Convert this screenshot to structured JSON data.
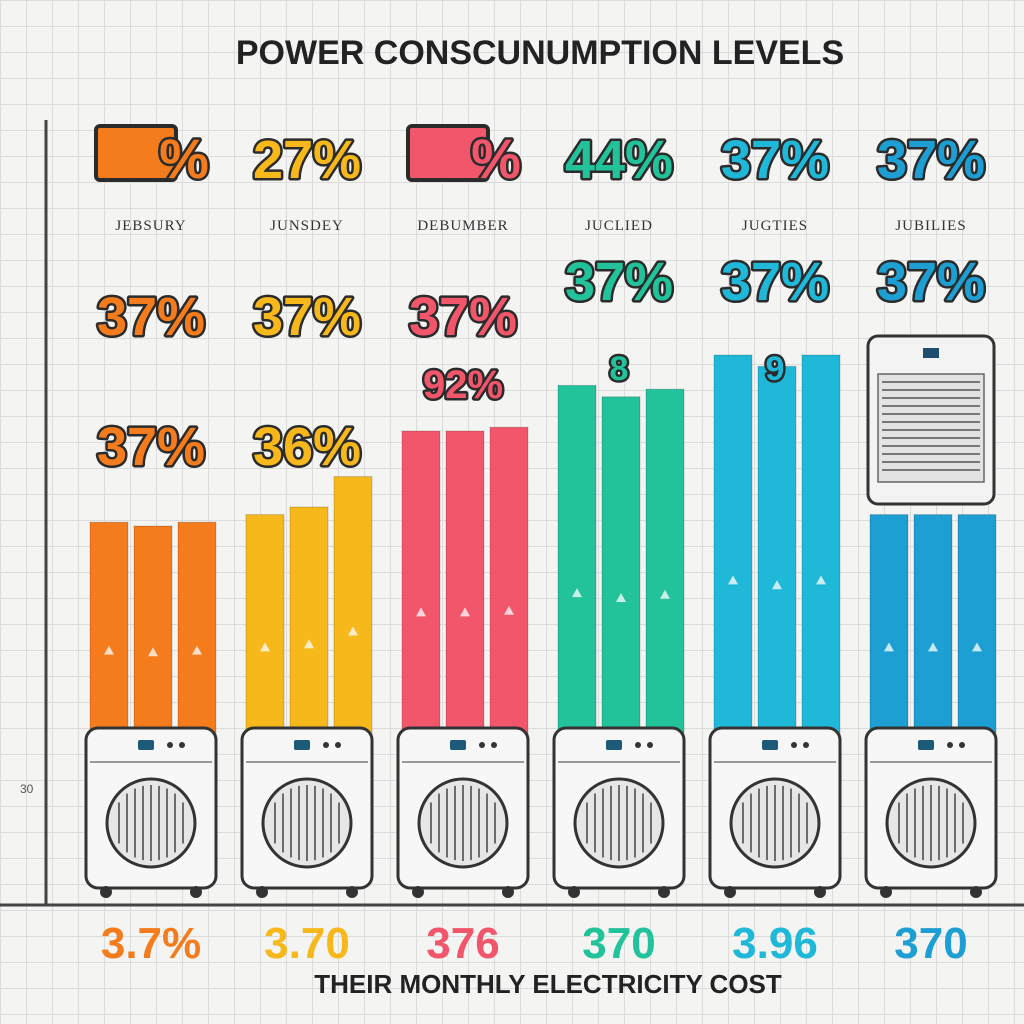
{
  "chart_data": {
    "type": "bar",
    "title": "POWER CONSCUNUMPTION LEVELS",
    "xlabel": "THEIR MONTHLY ELECTRICITY COST",
    "ylabel": "",
    "y_tick_label": "30",
    "grid": true,
    "categories": [
      "JEBSURY",
      "JUNSDEY",
      "DEBUMBER",
      "JUCLIED",
      "JUGTIES",
      "JUBILIES"
    ],
    "top_labels": [
      "%",
      "27%",
      "%",
      "44%",
      "37%",
      "37%"
    ],
    "mid_labels": [
      [
        "37%",
        "37%"
      ],
      [
        "37%",
        "36%"
      ],
      [
        "37%",
        "92%"
      ],
      [
        "37%",
        "8"
      ],
      [
        "37%",
        "9"
      ],
      [
        "37%",
        ""
      ]
    ],
    "bottom_labels": [
      "3.7%",
      "3.70",
      "376",
      "370",
      "3.96",
      "370"
    ],
    "colors": [
      "#f47c1c",
      "#f7b81c",
      "#f2566b",
      "#22c29a",
      "#1fb8d8",
      "#1e9fd3"
    ],
    "bar_heights_relative": [
      [
        0.56,
        0.55,
        0.56
      ],
      [
        0.58,
        0.6,
        0.68
      ],
      [
        0.8,
        0.8,
        0.81
      ],
      [
        0.92,
        0.89,
        0.91
      ],
      [
        1.0,
        0.97,
        1.0
      ],
      [
        0.58,
        0.58,
        0.58
      ]
    ],
    "bottom_legend": "icon: air conditioner unit under each month group"
  }
}
